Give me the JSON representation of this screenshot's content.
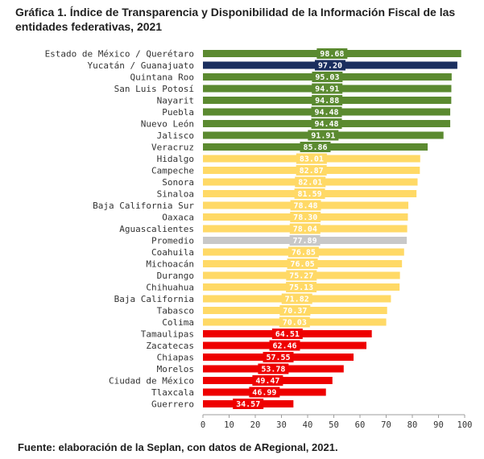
{
  "title": "Gráfica 1. Índice de Transparencia y Disponibilidad de la Información Fiscal de las entidades federativas, 2021",
  "source": "Fuente: elaboración de la Seplan, con datos de ARegional, 2021.",
  "colors": {
    "green": "#5b8a30",
    "navy": "#1a2e5e",
    "yellow": "#ffd966",
    "gray": "#c8c8c8",
    "red": "#ee0000",
    "axis": "#9e9e9e",
    "text": "#333333"
  },
  "chart_data": {
    "type": "bar",
    "orientation": "horizontal",
    "title": "Gráfica 1. Índice de Transparencia y Disponibilidad de la Información Fiscal de las entidades federativas, 2021",
    "xlabel": "",
    "ylabel": "",
    "xlim": [
      0,
      100
    ],
    "xticks": [
      0,
      10,
      20,
      30,
      40,
      50,
      60,
      70,
      80,
      90,
      100
    ],
    "grid": false,
    "categories": [
      "Estado de México / Querétaro",
      "Yucatán / Guanajuato",
      "Quintana Roo",
      "San Luis Potosí",
      "Nayarit",
      "Puebla",
      "Nuevo León",
      "Jalisco",
      "Veracruz",
      "Hidalgo",
      "Campeche",
      "Sonora",
      "Sinaloa",
      "Baja California Sur",
      "Oaxaca",
      "Aguascalientes",
      "Promedio",
      "Coahuila",
      "Michoacán",
      "Durango",
      "Chihuahua",
      "Baja California",
      "Tabasco",
      "Colima",
      "Tamaulipas",
      "Zacatecas",
      "Chiapas",
      "Morelos",
      "Ciudad de México",
      "Tlaxcala",
      "Guerrero"
    ],
    "values": [
      98.68,
      97.2,
      95.03,
      94.91,
      94.88,
      94.48,
      94.48,
      91.91,
      85.86,
      83.01,
      82.87,
      82.01,
      81.59,
      78.48,
      78.3,
      78.04,
      77.89,
      76.85,
      76.05,
      75.27,
      75.13,
      71.82,
      70.37,
      70.03,
      64.51,
      62.46,
      57.55,
      53.78,
      49.47,
      46.99,
      34.57
    ],
    "labels": [
      "98.68",
      "97.20",
      "95.03",
      "94.91",
      "94.88",
      "94.48",
      "94.48",
      "91.91",
      "85.86",
      "83.01",
      "82.87",
      "82.01",
      "81.59",
      "78.48",
      "78.30",
      "78.04",
      "77.89",
      "76.85",
      "76.05",
      "75.27",
      "75.13",
      "71.82",
      "70.37",
      "70.03",
      "64.51",
      "62.46",
      "57.55",
      "53.78",
      "49.47",
      "46.99",
      "34.57"
    ],
    "bar_colors": [
      "green",
      "navy",
      "green",
      "green",
      "green",
      "green",
      "green",
      "green",
      "green",
      "yellow",
      "yellow",
      "yellow",
      "yellow",
      "yellow",
      "yellow",
      "yellow",
      "gray",
      "yellow",
      "yellow",
      "yellow",
      "yellow",
      "yellow",
      "yellow",
      "yellow",
      "red",
      "red",
      "red",
      "red",
      "red",
      "red",
      "red"
    ]
  }
}
